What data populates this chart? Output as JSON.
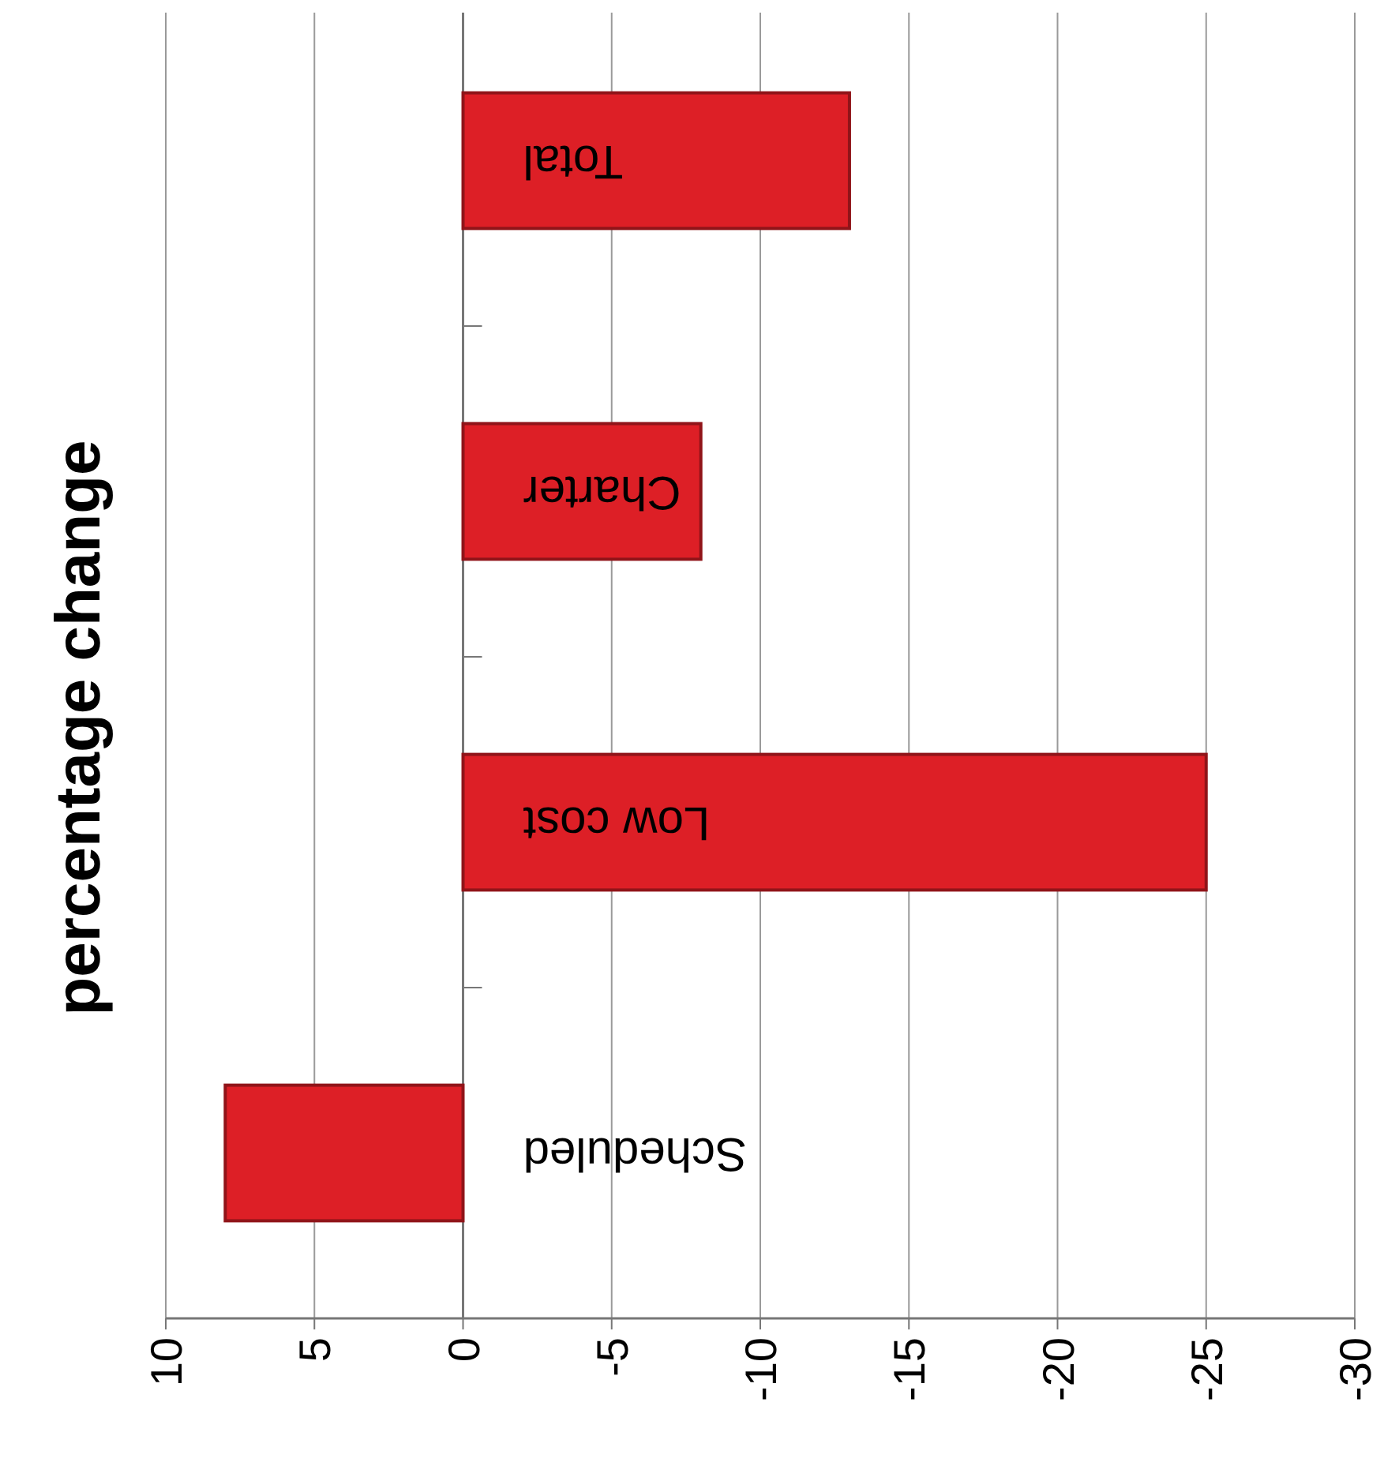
{
  "chart_data": {
    "type": "bar",
    "orientation": "horizontal",
    "title": "percentage change",
    "categories": [
      "Total",
      "Charter",
      "Low cost",
      "Scheduled"
    ],
    "values": [
      -13,
      -8,
      -25,
      8
    ],
    "color": "#dd1f26",
    "xlim": [
      10,
      -30
    ],
    "xticks": [
      10,
      5,
      0,
      -5,
      -10,
      -15,
      -20,
      -25,
      -30
    ],
    "grid": "x"
  }
}
